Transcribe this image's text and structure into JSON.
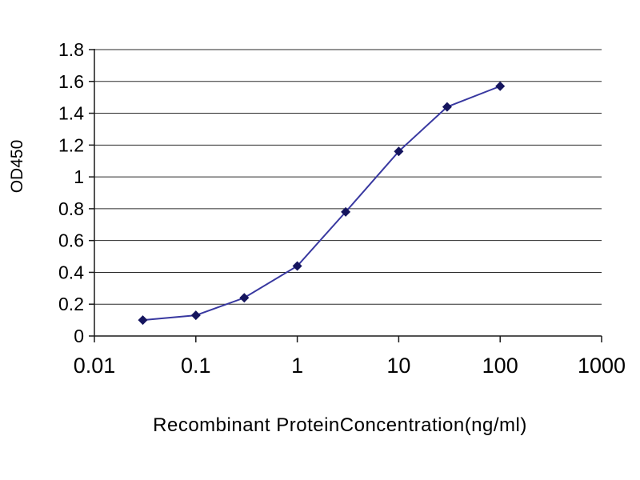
{
  "chart_data": {
    "type": "line",
    "title": "",
    "xlabel": "Recombinant ProteinConcentration(ng/ml)",
    "ylabel": "OD450",
    "x_scale": "log",
    "xlim": [
      0.01,
      1000
    ],
    "ylim": [
      0,
      1.8
    ],
    "x": [
      0.03,
      0.1,
      0.3,
      1,
      3,
      10,
      30,
      100
    ],
    "y": [
      0.1,
      0.13,
      0.24,
      0.44,
      0.78,
      1.16,
      1.44,
      1.57
    ],
    "x_ticks": [
      0.01,
      0.1,
      1,
      10,
      100,
      1000
    ],
    "x_tick_labels": [
      "0.01",
      "0.1",
      "1",
      "10",
      "100",
      "1000"
    ],
    "y_ticks": [
      0,
      0.2,
      0.4,
      0.6,
      0.8,
      1,
      1.2,
      1.4,
      1.6,
      1.8
    ],
    "y_tick_labels": [
      "0",
      "0.2",
      "0.4",
      "0.6",
      "0.8",
      "1",
      "1.2",
      "1.4",
      "1.6",
      "1.8"
    ],
    "grid": "horizontal",
    "legend": "none",
    "line_color": "#3838a0",
    "marker": "diamond",
    "marker_color": "#15155e",
    "axis_color": "#1a1a1a",
    "grid_color": "#2a2a2a",
    "text_color": "#000000"
  }
}
